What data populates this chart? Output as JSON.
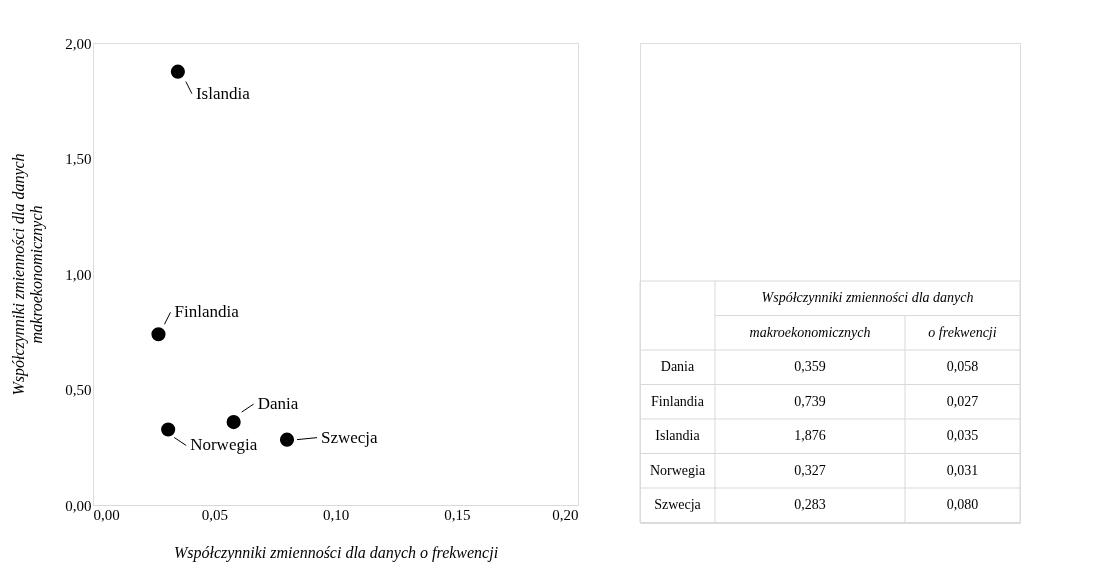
{
  "chart_data": [
    {
      "type": "scatter",
      "xlabel": "Współczynniki zmienności dla danych o frekwencji",
      "ylabel": "Współczynniki zmienności dla danych makroekonomicznych",
      "series": [
        {
          "color": "#000000",
          "x": [
            0.058,
            0.027,
            0.035,
            0.031,
            0.08
          ],
          "values": [
            0.359,
            0.739,
            1.876,
            0.327,
            0.283
          ]
        }
      ],
      "annotations": [
        {
          "text": "Dania",
          "x": 0.058,
          "y": 0.359
        },
        {
          "text": "Finlandia",
          "x": 0.027,
          "y": 0.739
        },
        {
          "text": "Islandia",
          "x": 0.035,
          "y": 1.876
        },
        {
          "text": "Norwegia",
          "x": 0.031,
          "y": 0.327
        },
        {
          "text": "Szwecja",
          "x": 0.08,
          "y": 0.283
        }
      ],
      "xlim": [
        0,
        0.2
      ],
      "xticks": [
        {
          "value": 0,
          "label": "0,00"
        },
        {
          "value": 0.05,
          "label": "0,05"
        },
        {
          "value": 0.1,
          "label": "0,10"
        },
        {
          "value": 0.15,
          "label": "0,15"
        },
        {
          "value": 0.2,
          "label": "0,20"
        }
      ],
      "ylim": [
        0,
        2
      ],
      "yticks": [
        {
          "value": 0,
          "label": "0,00"
        },
        {
          "value": 0.5,
          "label": "0,50"
        },
        {
          "value": 1,
          "label": "1,00"
        },
        {
          "value": 1.5,
          "label": "1,50"
        },
        {
          "value": 2,
          "label": "2,00"
        }
      ],
      "marker": "circle",
      "grid": false
    },
    {
      "type": "other",
      "title": "Współczynniki zmienności dla danych",
      "categories": [
        "Dania",
        "Finlandia",
        "Islandia",
        "Norwegia",
        "Szwecja"
      ],
      "series": [
        {
          "name": "makroekonomicznych",
          "values": [
            0.359,
            0.739,
            1.876,
            0.327,
            0.283
          ],
          "value_labels": [
            "0,359",
            "0,739",
            "1,876",
            "0,327",
            "0,283"
          ]
        },
        {
          "name": "o frekwencji",
          "values": [
            0.058,
            0.027,
            0.035,
            0.031,
            0.08
          ],
          "value_labels": [
            "0,058",
            "0,027",
            "0,035",
            "0,031",
            "0,080"
          ]
        }
      ]
    }
  ]
}
